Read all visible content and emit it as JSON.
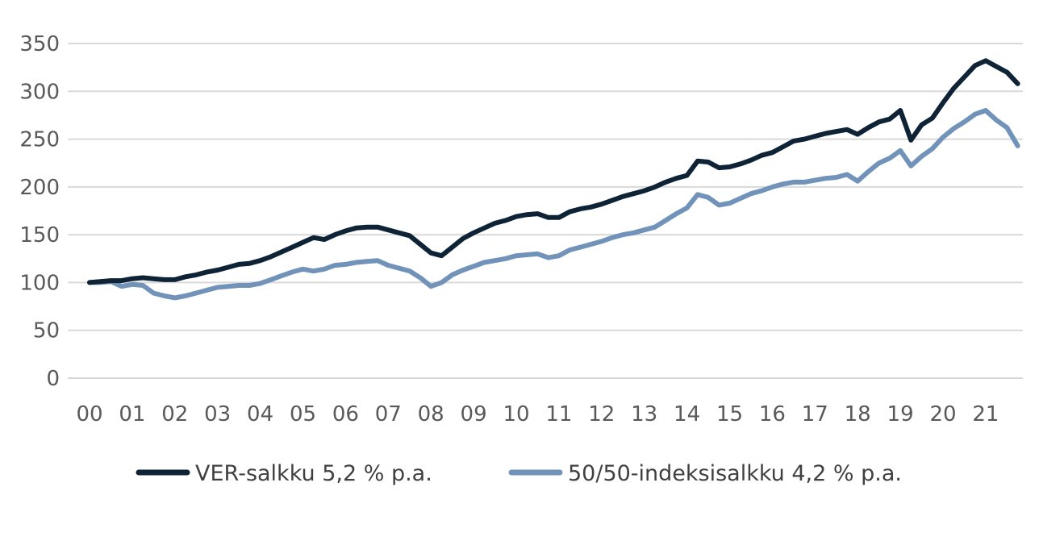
{
  "chart_data": {
    "type": "line",
    "title": "",
    "xlabel": "",
    "ylabel": "",
    "ylim": [
      0,
      350
    ],
    "yticks": [
      0,
      50,
      100,
      150,
      200,
      250,
      300,
      350
    ],
    "ytick_labels": [
      "0",
      "50",
      "100",
      "150",
      "200",
      "250",
      "300",
      "350"
    ],
    "xlim": [
      0,
      21.85
    ],
    "xtick_labels": [
      "00",
      "01",
      "02",
      "03",
      "04",
      "05",
      "06",
      "07",
      "08",
      "09",
      "10",
      "11",
      "12",
      "13",
      "14",
      "15",
      "16",
      "17",
      "18",
      "19",
      "20",
      "21"
    ],
    "grid": "horizontal",
    "legend_position": "bottom",
    "series": [
      {
        "name": "VER-salkku 5,2 % p.a.",
        "color": "#0f2337",
        "x": [
          0,
          0.25,
          0.5,
          0.75,
          1,
          1.25,
          1.5,
          1.75,
          2,
          2.25,
          2.5,
          2.75,
          3,
          3.25,
          3.5,
          3.75,
          4,
          4.25,
          4.5,
          4.75,
          5,
          5.25,
          5.5,
          5.75,
          6,
          6.25,
          6.5,
          6.75,
          7,
          7.25,
          7.5,
          7.75,
          8,
          8.25,
          8.5,
          8.75,
          9,
          9.25,
          9.5,
          9.75,
          10,
          10.25,
          10.5,
          10.75,
          11,
          11.25,
          11.5,
          11.75,
          12,
          12.25,
          12.5,
          12.75,
          13,
          13.25,
          13.5,
          13.75,
          14,
          14.25,
          14.5,
          14.75,
          15,
          15.25,
          15.5,
          15.75,
          16,
          16.25,
          16.5,
          16.75,
          17,
          17.25,
          17.5,
          17.75,
          18,
          18.25,
          18.5,
          18.75,
          19,
          19.25,
          19.5,
          19.75,
          20,
          20.25,
          20.5,
          20.75,
          21,
          21.25,
          21.5,
          21.75
        ],
        "values": [
          100,
          101,
          102,
          102,
          104,
          105,
          104,
          103,
          103,
          106,
          108,
          111,
          113,
          116,
          119,
          120,
          123,
          127,
          132,
          137,
          142,
          147,
          145,
          150,
          154,
          157,
          158,
          158,
          155,
          152,
          149,
          140,
          131,
          128,
          137,
          146,
          152,
          157,
          162,
          165,
          169,
          171,
          172,
          168,
          168,
          174,
          177,
          179,
          182,
          186,
          190,
          193,
          196,
          200,
          205,
          209,
          212,
          227,
          226,
          220,
          221,
          224,
          228,
          233,
          236,
          242,
          248,
          250,
          253,
          256,
          258,
          260,
          255,
          262,
          268,
          271,
          280,
          249,
          265,
          272,
          288,
          303,
          315,
          327,
          332,
          326,
          320,
          308
        ]
      },
      {
        "name": "50/50-indeksisalkku 4,2 % p.a.",
        "color": "#7193ba",
        "x": [
          0,
          0.25,
          0.5,
          0.75,
          1,
          1.25,
          1.5,
          1.75,
          2,
          2.25,
          2.5,
          2.75,
          3,
          3.25,
          3.5,
          3.75,
          4,
          4.25,
          4.5,
          4.75,
          5,
          5.25,
          5.5,
          5.75,
          6,
          6.25,
          6.5,
          6.75,
          7,
          7.25,
          7.5,
          7.75,
          8,
          8.25,
          8.5,
          8.75,
          9,
          9.25,
          9.5,
          9.75,
          10,
          10.25,
          10.5,
          10.75,
          11,
          11.25,
          11.5,
          11.75,
          12,
          12.25,
          12.5,
          12.75,
          13,
          13.25,
          13.5,
          13.75,
          14,
          14.25,
          14.5,
          14.75,
          15,
          15.25,
          15.5,
          15.75,
          16,
          16.25,
          16.5,
          16.75,
          17,
          17.25,
          17.5,
          17.75,
          18,
          18.25,
          18.5,
          18.75,
          19,
          19.25,
          19.5,
          19.75,
          20,
          20.25,
          20.5,
          20.75,
          21,
          21.25,
          21.5,
          21.75
        ],
        "values": [
          100,
          100,
          101,
          96,
          98,
          97,
          89,
          86,
          84,
          86,
          89,
          92,
          95,
          96,
          97,
          97,
          99,
          103,
          107,
          111,
          114,
          112,
          114,
          118,
          119,
          121,
          122,
          123,
          118,
          115,
          112,
          105,
          96,
          100,
          108,
          113,
          117,
          121,
          123,
          125,
          128,
          129,
          130,
          126,
          128,
          134,
          137,
          140,
          143,
          147,
          150,
          152,
          155,
          158,
          165,
          172,
          178,
          192,
          189,
          181,
          183,
          188,
          193,
          196,
          200,
          203,
          205,
          205,
          207,
          209,
          210,
          213,
          206,
          216,
          225,
          230,
          238,
          222,
          232,
          240,
          252,
          261,
          268,
          276,
          280,
          270,
          262,
          243
        ]
      }
    ]
  }
}
